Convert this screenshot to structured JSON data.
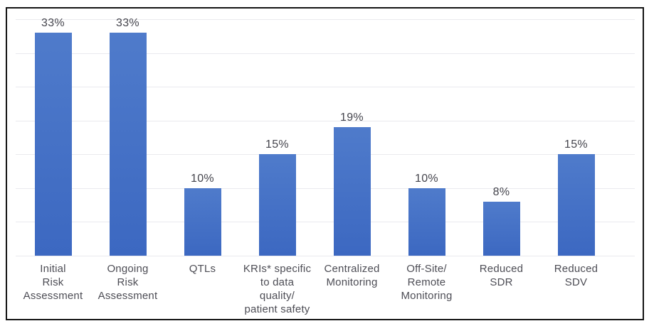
{
  "chart_data": {
    "type": "bar",
    "categories": [
      "Initial\nRisk\nAssessment",
      "Ongoing\nRisk\nAssessment",
      "QTLs",
      "KRIs* specific\nto data\nquality/\npatient safety",
      "Centralized\nMonitoring",
      "Off-Site/\nRemote\nMonitoring",
      "Reduced\nSDR",
      "Reduced\nSDV"
    ],
    "values": [
      33,
      33,
      10,
      15,
      19,
      10,
      8,
      15
    ],
    "data_labels": [
      "33%",
      "33%",
      "10%",
      "15%",
      "19%",
      "10%",
      "8%",
      "15%"
    ],
    "title": "",
    "xlabel": "",
    "ylabel": "",
    "ylim": [
      0,
      35
    ],
    "gridline_step": 5,
    "grid": true,
    "legend": false,
    "axis_tick_labels_visible": false
  },
  "colors": {
    "bar_gradient_top": "#4F7BCB",
    "bar_gradient_bottom": "#3C68C1",
    "gridline": "#EAEAEE",
    "data_label": "#45454D",
    "category_label": "#4D4D55",
    "frame_border": "#141414",
    "background": "#FFFFFF"
  }
}
